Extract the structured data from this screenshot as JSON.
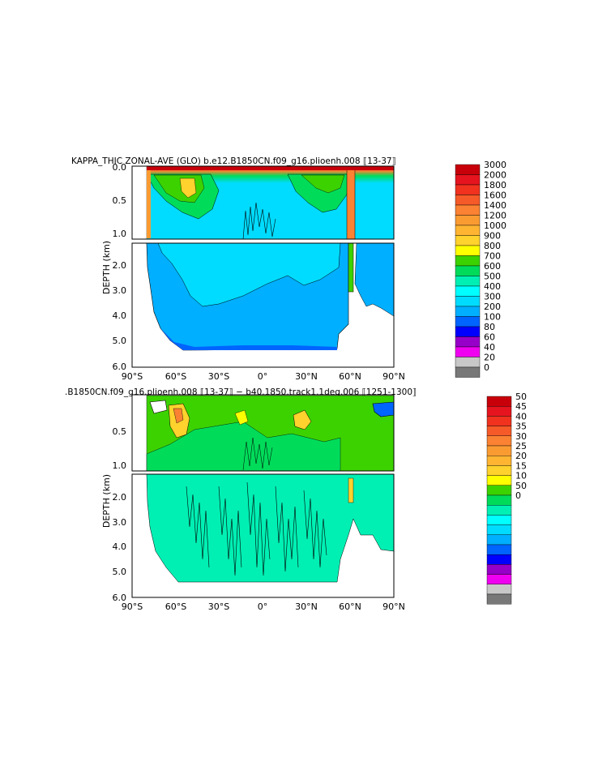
{
  "chart_data": [
    {
      "type": "heatmap",
      "title": "KAPPA_THIC ZONAL-AVE (GLO) b.e12.B1850CN.f09_g16.plioenh.008 ⟦13-37⟧",
      "ylabel": "DEPTH (km)",
      "x_ticks": [
        "90°S",
        "60°S",
        "30°S",
        "0°",
        "30°N",
        "60°N",
        "90°N"
      ],
      "upper_y_ticks": [
        "0.0",
        "0.5",
        "1.0"
      ],
      "lower_y_ticks": [
        "2.0",
        "3.0",
        "4.0",
        "5.0",
        "6.0"
      ],
      "xlim": [
        -90,
        90
      ],
      "ylim": [
        6.0,
        0.0
      ],
      "colorbar_labels": [
        "3000",
        "2000",
        "1800",
        "1600",
        "1400",
        "1200",
        "1000",
        "900",
        "800",
        "700",
        "600",
        "500",
        "400",
        "300",
        "200",
        "100",
        "80",
        "60",
        "40",
        "20",
        "0"
      ],
      "colorbar_colors": [
        "#c8000a",
        "#e6141e",
        "#f0321e",
        "#f55a28",
        "#fa8232",
        "#fa9b32",
        "#ffb432",
        "#ffd22d",
        "#ffff00",
        "#3cd200",
        "#00dc5a",
        "#00f0b4",
        "#00ffff",
        "#00dcff",
        "#00afff",
        "#0064ff",
        "#0000ff",
        "#9600c8",
        "#f000f0",
        "#c8c8c8",
        "#787878"
      ],
      "fill_levels": [
        {
          "level": "300",
          "lat_range": [
            -75,
            52
          ],
          "depth_range": [
            1.2,
            5.3
          ]
        },
        {
          "level": "400",
          "lat_range": [
            -75,
            78
          ],
          "depth_range": [
            0.1,
            1.1
          ]
        },
        {
          "level": "1000+",
          "lat_range": [
            -75,
            90
          ],
          "depth_range": [
            0.0,
            0.1
          ]
        }
      ]
    },
    {
      "type": "heatmap",
      "title": ".B1850CN.f09_g16.plioenh.008 ⟦13-37⟧ − b40.1850.track1.1deg.006 ⟦1251-1300⟧",
      "ylabel": "DEPTH (km)",
      "x_ticks": [
        "90°S",
        "60°S",
        "30°S",
        "0°",
        "30°N",
        "60°N",
        "90°N"
      ],
      "upper_y_ticks": [
        "0.5",
        "1.0"
      ],
      "lower_y_ticks": [
        "2.0",
        "3.0",
        "4.0",
        "5.0",
        "6.0"
      ],
      "xlim": [
        -90,
        90
      ],
      "ylim": [
        6.0,
        0.0
      ],
      "colorbar_labels": [
        "50",
        "45",
        "40",
        "35",
        "30",
        "25",
        "20",
        "15",
        "10",
        "50",
        "0",
        "",
        "",
        "",
        "",
        "",
        "",
        "",
        "",
        "",
        ""
      ],
      "colorbar_colors": [
        "#c8000a",
        "#e6141e",
        "#f0321e",
        "#f55a28",
        "#fa8232",
        "#fa9b32",
        "#ffb432",
        "#ffd22d",
        "#ffff00",
        "#3cd200",
        "#00dc5a",
        "#00f0b4",
        "#00ffff",
        "#00dcff",
        "#00afff",
        "#0064ff",
        "#0000ff",
        "#9600c8",
        "#f000f0",
        "#c8c8c8",
        "#787878"
      ],
      "fill_levels": [
        {
          "level": "0",
          "lat_range": [
            -75,
            52
          ],
          "depth_range": [
            1.2,
            5.3
          ]
        },
        {
          "level": "10",
          "lat_range": [
            -75,
            90
          ],
          "depth_range": [
            0.1,
            1.1
          ]
        }
      ]
    }
  ]
}
